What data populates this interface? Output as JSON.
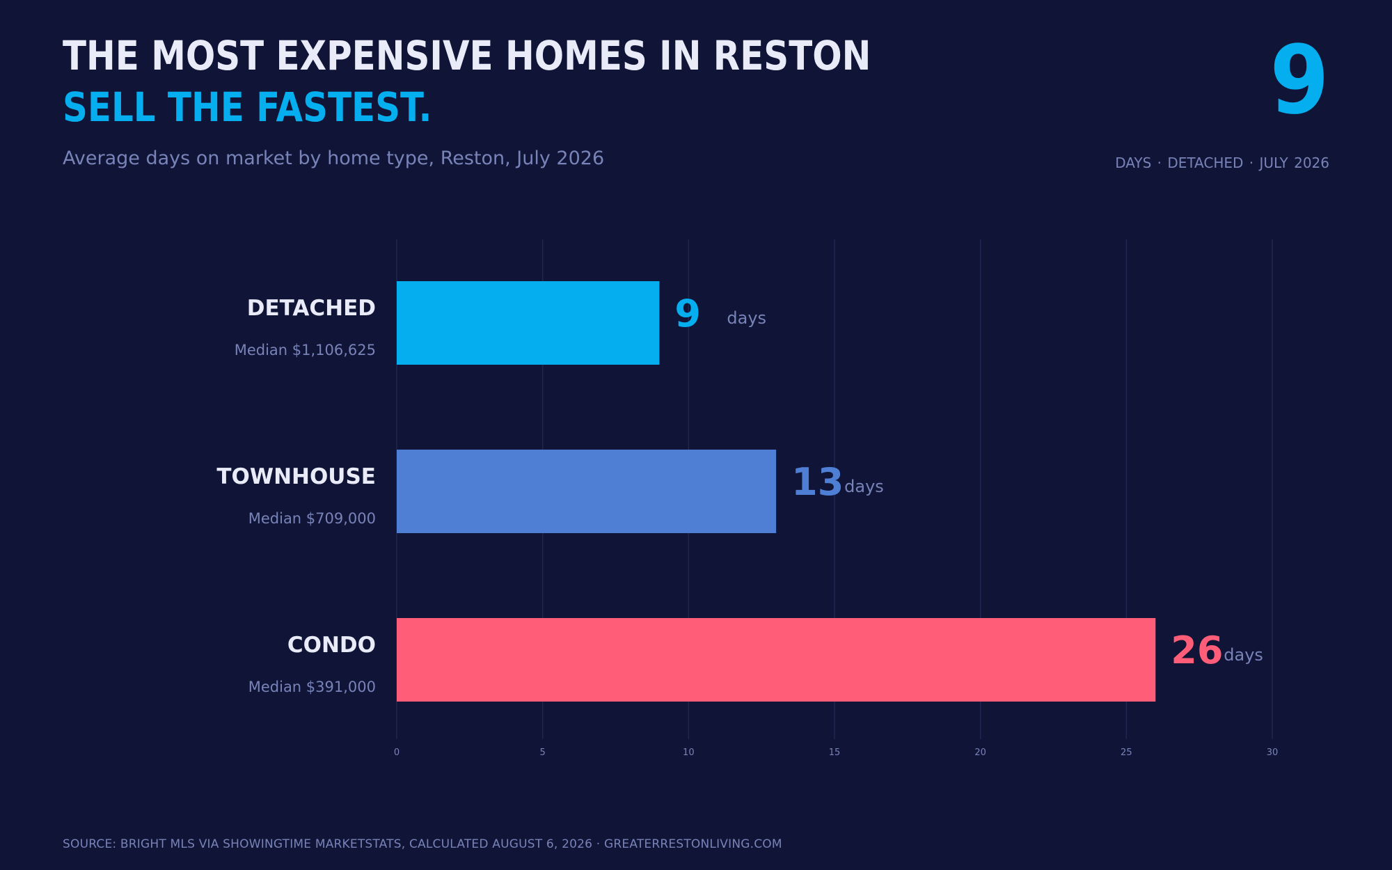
{
  "header": {
    "title_line1": "THE MOST EXPENSIVE HOMES IN RESTON",
    "title_line2": "SELL THE FASTEST.",
    "subtitle": "Average days on market by home type, Reston, July 2026"
  },
  "highlight": {
    "value": "9",
    "caption": "DAYS  ·  DETACHED  ·  JULY 2026"
  },
  "footer": {
    "source": "SOURCE: BRIGHT MLS VIA SHOWINGTIME MARKETSTATS, CALCULATED AUGUST 6, 2026   ·   GREATERRESTONLIVING.COM"
  },
  "colors": {
    "background": "#101537",
    "title": "#e9ecf8",
    "accent": "#05aeef",
    "muted": "#7883b8",
    "grid": "#1f2650",
    "detached": "#05aeef",
    "townhouse": "#4e7fd4",
    "condo": "#ff5d78"
  },
  "chart_data": {
    "type": "bar",
    "orientation": "horizontal",
    "categories": [
      "DETACHED",
      "TOWNHOUSE",
      "CONDO"
    ],
    "sublabels": [
      "Median $1,106,625",
      "Median $709,000",
      "Median $391,000"
    ],
    "values": [
      9,
      13,
      26
    ],
    "value_unit": "days",
    "bar_colors": [
      "#05aeef",
      "#4e7fd4",
      "#ff5d78"
    ],
    "xlim": [
      0,
      30
    ],
    "xticks": [
      0,
      5,
      10,
      15,
      20,
      25,
      30
    ],
    "grid": true
  }
}
